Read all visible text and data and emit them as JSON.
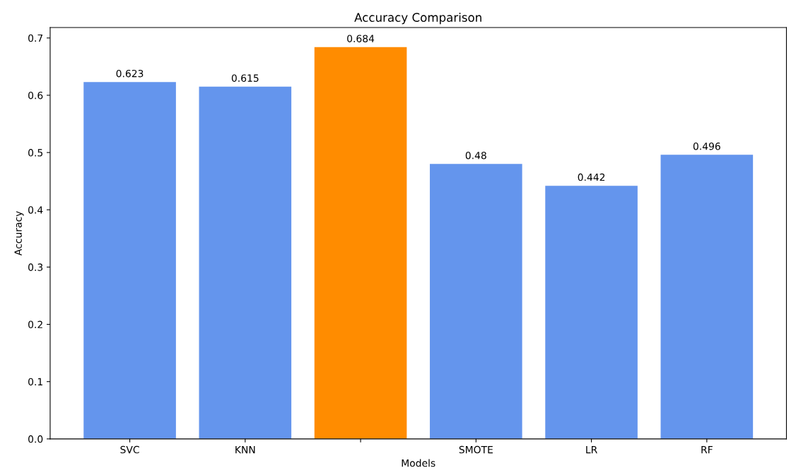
{
  "chart_data": {
    "type": "bar",
    "title": "Accuracy Comparison",
    "xlabel": "Models",
    "ylabel": "Accuracy",
    "categories": [
      "SVC",
      "KNN",
      null,
      "SMOTE",
      "LR",
      "RF"
    ],
    "values": [
      0.623,
      0.615,
      0.684,
      0.48,
      0.442,
      0.496
    ],
    "colors": [
      "#6495ed",
      "#6495ed",
      "#ff8c00",
      "#6495ed",
      "#6495ed",
      "#6495ed"
    ],
    "ylim": [
      0,
      0.7182
    ],
    "yticks": [
      {
        "value": 0,
        "label": "0.0"
      },
      0.1,
      0.2,
      0.3,
      0.4,
      0.5,
      0.6,
      0.7
    ],
    "data_labels": true
  }
}
